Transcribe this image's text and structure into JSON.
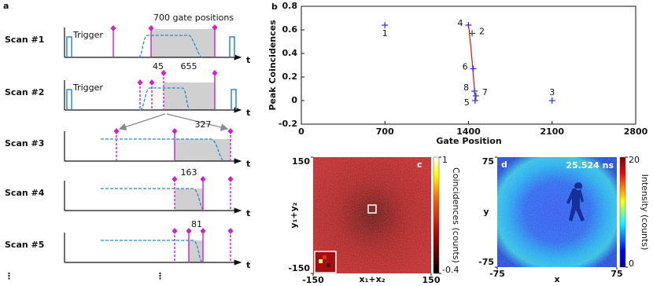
{
  "panel_a": {
    "label": "a",
    "scans": [
      "Scan #1",
      "Scan #2",
      "Scan #3",
      "Scan #4",
      "Scan #5"
    ],
    "time_axis": "t",
    "trigger": "Trigger",
    "gate_positions": "700 gate positions",
    "counts": [
      45,
      655,
      327,
      163,
      81
    ],
    "ellipsis": "⋮"
  },
  "chart_data": {
    "type": "scatter",
    "panel_label": "b",
    "xlabel": "Gate Position",
    "ylabel": "Peak Coincidences",
    "xlim": [
      0,
      2800
    ],
    "xticks": [
      0,
      700,
      1400,
      2100,
      2800
    ],
    "ylim": [
      -0.2,
      0.8
    ],
    "yticks": [
      -0.2,
      0,
      0.2,
      0.4,
      0.6,
      0.8
    ],
    "color": "#2b35d8",
    "points": [
      {
        "label": "1",
        "x": 700,
        "y": 0.64
      },
      {
        "label": "2",
        "x": 1430,
        "y": 0.57
      },
      {
        "label": "3",
        "x": 2100,
        "y": 0.0
      },
      {
        "label": "4",
        "x": 1400,
        "y": 0.64
      },
      {
        "label": "5",
        "x": 1455,
        "y": 0.0
      },
      {
        "label": "6",
        "x": 1440,
        "y": 0.27
      },
      {
        "label": "7",
        "x": 1462,
        "y": 0.04
      },
      {
        "label": "8",
        "x": 1450,
        "y": 0.08
      }
    ],
    "curve": {
      "color": "#e02020",
      "x": [
        1395,
        1405,
        1420,
        1435,
        1445,
        1455,
        1462
      ],
      "y": [
        0.65,
        0.6,
        0.45,
        0.28,
        0.15,
        0.05,
        0.0
      ]
    }
  },
  "panel_c": {
    "label": "c",
    "xlim": [
      -150,
      150
    ],
    "xticks": [
      -150,
      150
    ],
    "ylim": [
      -150,
      150
    ],
    "yticks": [
      -150,
      150
    ],
    "xlabel": "x₁+x₂",
    "ylabel": "y₁+y₂",
    "clim": [
      -0.4,
      1
    ],
    "cticks": [
      -0.4,
      1
    ],
    "clabel": "Coincidences (counts)"
  },
  "panel_d": {
    "label": "d",
    "time": "25.524 ns",
    "xlim": [
      -75,
      75
    ],
    "xticks": [
      -75,
      75
    ],
    "ylim": [
      -75,
      75
    ],
    "yticks": [
      -75,
      75
    ],
    "xlabel": "x",
    "ylabel": "y",
    "clim": [
      0,
      20
    ],
    "cticks": [
      0,
      20
    ],
    "clabel": "Intensity (counts)"
  }
}
